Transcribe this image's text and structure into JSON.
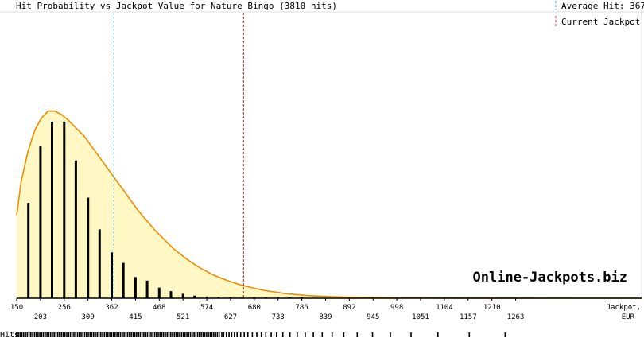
{
  "chart_data": {
    "type": "bar",
    "title": "Hit Probability vs Jackpot Value for Nature Bingo (3810 hits)",
    "xlabel": "Jackpot, EUR",
    "xlabel_line1": "Jackpot,",
    "xlabel_line2": "EUR",
    "hits_label": "Hits",
    "watermark": "Online-Jackpots.biz",
    "xlim": [
      150,
      1544
    ],
    "ylim": [
      0,
      1
    ],
    "grid": false,
    "legend_position": "top-right",
    "tick_labels_upper": [
      "150",
      "256",
      "362",
      "468",
      "574",
      "680",
      "786",
      "892",
      "998",
      "1104",
      "1210"
    ],
    "tick_labels_lower": [
      "203",
      "309",
      "415",
      "521",
      "627",
      "733",
      "839",
      "945",
      "1051",
      "1157",
      "1263"
    ],
    "bar_x": [
      176,
      203,
      229,
      256,
      282,
      309,
      335,
      362,
      388,
      415,
      441,
      468,
      494,
      521,
      547,
      574,
      600,
      627,
      653,
      680,
      706,
      733,
      759,
      786
    ],
    "bar_values": [
      0.54,
      0.86,
      1.0,
      1.0,
      0.78,
      0.57,
      0.39,
      0.26,
      0.2,
      0.12,
      0.1,
      0.06,
      0.04,
      0.025,
      0.015,
      0.01,
      0.006,
      0.004,
      0.003,
      0.002,
      0.001,
      0.001,
      0.0005,
      0.0005
    ],
    "curve_x": [
      150,
      160,
      175,
      190,
      205,
      220,
      235,
      250,
      265,
      280,
      300,
      320,
      340,
      360,
      380,
      400,
      420,
      440,
      460,
      480,
      500,
      530,
      560,
      590,
      620,
      650,
      700,
      750,
      800,
      850,
      900,
      950,
      1000,
      1100,
      1200,
      1300,
      1400,
      1544
    ],
    "curve_y": [
      0.47,
      0.66,
      0.83,
      0.95,
      1.02,
      1.06,
      1.06,
      1.04,
      1.01,
      0.97,
      0.92,
      0.85,
      0.78,
      0.71,
      0.64,
      0.57,
      0.5,
      0.44,
      0.38,
      0.33,
      0.28,
      0.22,
      0.17,
      0.13,
      0.1,
      0.075,
      0.045,
      0.026,
      0.015,
      0.009,
      0.005,
      0.003,
      0.002,
      0.001,
      0.0005,
      0.0003,
      0.0001,
      0.0
    ],
    "average_hit": 367,
    "current_jackpot": 656,
    "legend": [
      {
        "label": "Average Hit: 367",
        "color": "#3399cc"
      },
      {
        "label": "Current Jackpot",
        "color": "#cc2222"
      }
    ],
    "hit_ticks": [
      150,
      154,
      158,
      162,
      166,
      170,
      174,
      178,
      182,
      186,
      190,
      194,
      198,
      202,
      206,
      210,
      214,
      218,
      222,
      226,
      230,
      234,
      238,
      242,
      246,
      250,
      254,
      258,
      262,
      266,
      270,
      274,
      278,
      282,
      286,
      290,
      294,
      298,
      302,
      306,
      310,
      314,
      318,
      322,
      326,
      330,
      334,
      338,
      342,
      346,
      350,
      354,
      358,
      362,
      366,
      370,
      374,
      378,
      382,
      386,
      390,
      394,
      398,
      402,
      406,
      410,
      414,
      418,
      422,
      426,
      430,
      434,
      438,
      442,
      446,
      450,
      454,
      458,
      462,
      466,
      470,
      474,
      478,
      482,
      486,
      490,
      494,
      498,
      502,
      506,
      510,
      514,
      518,
      522,
      526,
      530,
      534,
      538,
      542,
      546,
      550,
      554,
      558,
      562,
      566,
      570,
      574,
      578,
      582,
      586,
      590,
      594,
      598,
      602,
      608,
      612,
      618,
      624,
      630,
      636,
      642,
      650,
      658,
      666,
      676,
      686,
      696,
      706,
      718,
      730,
      744,
      760,
      776,
      794,
      812,
      832,
      854,
      880,
      910,
      944,
      984,
      1030,
      1090,
      1160,
      1240
    ],
    "colors": {
      "fill": "#fff7c4",
      "curve": "#f08c00",
      "bar": "#000000",
      "average_line": "#3399cc",
      "current_line": "#cc2222",
      "watermark": "#f7dcb4",
      "axis": "#000000"
    }
  }
}
